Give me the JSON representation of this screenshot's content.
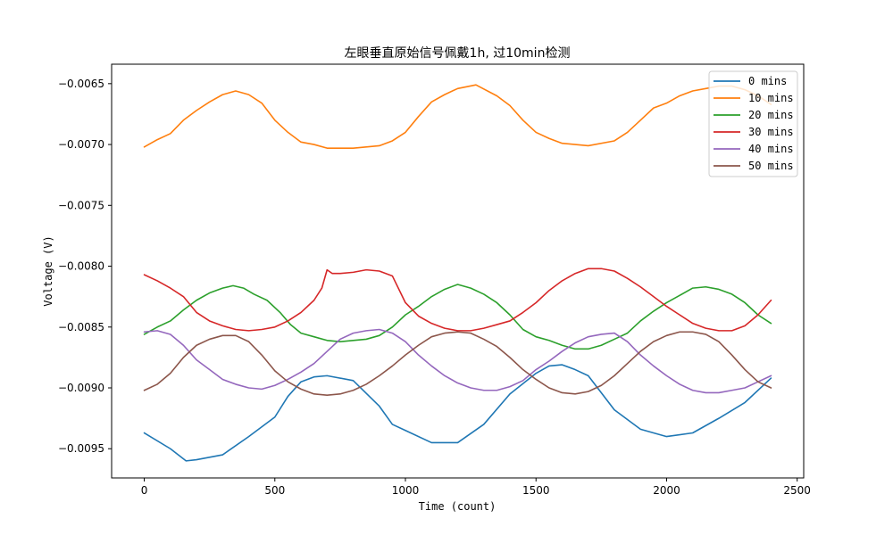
{
  "chart_data": {
    "type": "line",
    "title": "左眼垂直原始信号佩戴1h, 过10min检测",
    "xlabel": "Time (count)",
    "ylabel": "Voltage (V)",
    "xlim": [
      -125,
      2525
    ],
    "ylim": [
      -0.00974,
      -0.00634
    ],
    "xticks": [
      0,
      500,
      1000,
      1500,
      2000,
      2500
    ],
    "xtick_labels": [
      "0",
      "500",
      "1000",
      "1500",
      "2000",
      "2500"
    ],
    "yticks": [
      -0.0065,
      -0.007,
      -0.0075,
      -0.008,
      -0.0085,
      -0.009,
      -0.0095
    ],
    "ytick_labels": [
      "−0.0065",
      "−0.0070",
      "−0.0075",
      "−0.0080",
      "−0.0085",
      "−0.0090",
      "−0.0095"
    ],
    "grid": false,
    "legend_position": "top-right",
    "series": [
      {
        "name": "0 mins",
        "color": "#1f77b4",
        "x": [
          0,
          100,
          160,
          200,
          300,
          400,
          500,
          550,
          600,
          650,
          700,
          800,
          900,
          950,
          1000,
          1100,
          1200,
          1300,
          1400,
          1500,
          1550,
          1600,
          1650,
          1700,
          1800,
          1900,
          2000,
          2100,
          2200,
          2300,
          2400
        ],
        "y": [
          -0.00937,
          -0.0095,
          -0.0096,
          -0.00959,
          -0.00955,
          -0.0094,
          -0.00924,
          -0.00907,
          -0.00895,
          -0.00891,
          -0.0089,
          -0.00894,
          -0.00915,
          -0.0093,
          -0.00935,
          -0.00945,
          -0.00945,
          -0.0093,
          -0.00905,
          -0.00888,
          -0.00882,
          -0.00881,
          -0.00885,
          -0.0089,
          -0.00918,
          -0.00934,
          -0.0094,
          -0.00937,
          -0.00925,
          -0.00912,
          -0.00892
        ]
      },
      {
        "name": "10 mins",
        "color": "#ff7f0e",
        "x": [
          0,
          50,
          100,
          150,
          200,
          250,
          300,
          350,
          400,
          450,
          500,
          550,
          600,
          650,
          700,
          800,
          900,
          950,
          1000,
          1050,
          1100,
          1150,
          1200,
          1270,
          1350,
          1400,
          1450,
          1500,
          1550,
          1600,
          1700,
          1800,
          1850,
          1900,
          1950,
          2000,
          2050,
          2100,
          2150,
          2200,
          2250,
          2300,
          2350,
          2400
        ],
        "y": [
          -0.00702,
          -0.00696,
          -0.00691,
          -0.0068,
          -0.00672,
          -0.00665,
          -0.00659,
          -0.00656,
          -0.00659,
          -0.00666,
          -0.0068,
          -0.0069,
          -0.00698,
          -0.007,
          -0.00703,
          -0.00703,
          -0.00701,
          -0.00697,
          -0.0069,
          -0.00677,
          -0.00665,
          -0.00659,
          -0.00654,
          -0.00651,
          -0.0066,
          -0.00668,
          -0.0068,
          -0.0069,
          -0.00695,
          -0.00699,
          -0.00701,
          -0.00697,
          -0.0069,
          -0.0068,
          -0.0067,
          -0.00666,
          -0.0066,
          -0.00656,
          -0.00654,
          -0.00652,
          -0.00652,
          -0.00655,
          -0.0066,
          -0.00667
        ]
      },
      {
        "name": "20 mins",
        "color": "#2ca02c",
        "x": [
          0,
          50,
          100,
          150,
          200,
          250,
          300,
          340,
          380,
          420,
          470,
          520,
          560,
          600,
          650,
          700,
          750,
          800,
          850,
          900,
          950,
          1000,
          1050,
          1100,
          1150,
          1200,
          1250,
          1300,
          1350,
          1400,
          1450,
          1500,
          1550,
          1600,
          1650,
          1700,
          1750,
          1800,
          1850,
          1900,
          1950,
          2000,
          2050,
          2100,
          2150,
          2200,
          2250,
          2300,
          2350,
          2400
        ],
        "y": [
          -0.00856,
          -0.0085,
          -0.00845,
          -0.00836,
          -0.00828,
          -0.00822,
          -0.00818,
          -0.00816,
          -0.00818,
          -0.00823,
          -0.00828,
          -0.00838,
          -0.00848,
          -0.00855,
          -0.00858,
          -0.00861,
          -0.00862,
          -0.00861,
          -0.0086,
          -0.00857,
          -0.0085,
          -0.0084,
          -0.00833,
          -0.00825,
          -0.00819,
          -0.00815,
          -0.00818,
          -0.00823,
          -0.0083,
          -0.0084,
          -0.00852,
          -0.00858,
          -0.00861,
          -0.00865,
          -0.00868,
          -0.00868,
          -0.00865,
          -0.0086,
          -0.00855,
          -0.00845,
          -0.00837,
          -0.0083,
          -0.00824,
          -0.00818,
          -0.00817,
          -0.00819,
          -0.00823,
          -0.0083,
          -0.0084,
          -0.00847
        ]
      },
      {
        "name": "30 mins",
        "color": "#d62728",
        "x": [
          0,
          50,
          100,
          150,
          200,
          250,
          300,
          350,
          400,
          450,
          500,
          550,
          600,
          650,
          680,
          700,
          720,
          750,
          800,
          850,
          900,
          950,
          1000,
          1050,
          1100,
          1150,
          1200,
          1250,
          1300,
          1350,
          1400,
          1450,
          1500,
          1550,
          1600,
          1650,
          1700,
          1750,
          1800,
          1850,
          1900,
          1950,
          2000,
          2050,
          2100,
          2150,
          2200,
          2250,
          2300,
          2350,
          2400
        ],
        "y": [
          -0.00807,
          -0.00812,
          -0.00818,
          -0.00825,
          -0.00838,
          -0.00845,
          -0.00849,
          -0.00852,
          -0.00853,
          -0.00852,
          -0.0085,
          -0.00845,
          -0.00838,
          -0.00828,
          -0.00818,
          -0.00803,
          -0.00806,
          -0.00806,
          -0.00805,
          -0.00803,
          -0.00804,
          -0.00808,
          -0.0083,
          -0.00841,
          -0.00847,
          -0.00851,
          -0.00853,
          -0.00853,
          -0.00851,
          -0.00848,
          -0.00845,
          -0.00838,
          -0.0083,
          -0.0082,
          -0.00812,
          -0.00806,
          -0.00802,
          -0.00802,
          -0.00804,
          -0.0081,
          -0.00817,
          -0.00825,
          -0.00833,
          -0.0084,
          -0.00847,
          -0.00851,
          -0.00853,
          -0.00853,
          -0.00849,
          -0.0084,
          -0.00828
        ]
      },
      {
        "name": "40 mins",
        "color": "#9467bd",
        "x": [
          0,
          50,
          100,
          150,
          200,
          250,
          300,
          350,
          400,
          450,
          500,
          550,
          600,
          650,
          700,
          750,
          800,
          850,
          900,
          950,
          1000,
          1050,
          1100,
          1150,
          1200,
          1250,
          1300,
          1350,
          1400,
          1450,
          1500,
          1550,
          1600,
          1650,
          1700,
          1750,
          1800,
          1850,
          1900,
          1950,
          2000,
          2050,
          2100,
          2150,
          2200,
          2250,
          2300,
          2350,
          2400
        ],
        "y": [
          -0.00854,
          -0.00853,
          -0.00856,
          -0.00865,
          -0.00877,
          -0.00885,
          -0.00893,
          -0.00897,
          -0.009,
          -0.00901,
          -0.00898,
          -0.00893,
          -0.00887,
          -0.0088,
          -0.0087,
          -0.0086,
          -0.00855,
          -0.00853,
          -0.00852,
          -0.00855,
          -0.00862,
          -0.00873,
          -0.00882,
          -0.0089,
          -0.00896,
          -0.009,
          -0.00902,
          -0.00902,
          -0.00899,
          -0.00894,
          -0.00885,
          -0.00878,
          -0.0087,
          -0.00863,
          -0.00858,
          -0.00856,
          -0.00855,
          -0.00862,
          -0.00873,
          -0.00882,
          -0.0089,
          -0.00897,
          -0.00902,
          -0.00904,
          -0.00904,
          -0.00902,
          -0.009,
          -0.00895,
          -0.0089
        ]
      },
      {
        "name": "50 mins",
        "color": "#8c564b",
        "x": [
          0,
          50,
          100,
          150,
          200,
          250,
          300,
          350,
          400,
          450,
          500,
          550,
          600,
          650,
          700,
          750,
          800,
          850,
          900,
          950,
          1000,
          1050,
          1100,
          1150,
          1200,
          1250,
          1300,
          1350,
          1400,
          1450,
          1500,
          1550,
          1600,
          1650,
          1700,
          1750,
          1800,
          1850,
          1900,
          1950,
          2000,
          2050,
          2100,
          2150,
          2200,
          2250,
          2300,
          2350,
          2400
        ],
        "y": [
          -0.00902,
          -0.00897,
          -0.00888,
          -0.00875,
          -0.00865,
          -0.0086,
          -0.00857,
          -0.00857,
          -0.00862,
          -0.00873,
          -0.00886,
          -0.00895,
          -0.00901,
          -0.00905,
          -0.00906,
          -0.00905,
          -0.00902,
          -0.00897,
          -0.0089,
          -0.00882,
          -0.00873,
          -0.00865,
          -0.00858,
          -0.00855,
          -0.00854,
          -0.00855,
          -0.0086,
          -0.00866,
          -0.00875,
          -0.00885,
          -0.00893,
          -0.009,
          -0.00904,
          -0.00905,
          -0.00903,
          -0.00898,
          -0.0089,
          -0.0088,
          -0.0087,
          -0.00862,
          -0.00857,
          -0.00854,
          -0.00854,
          -0.00856,
          -0.00862,
          -0.00873,
          -0.00885,
          -0.00895,
          -0.009
        ]
      }
    ]
  }
}
